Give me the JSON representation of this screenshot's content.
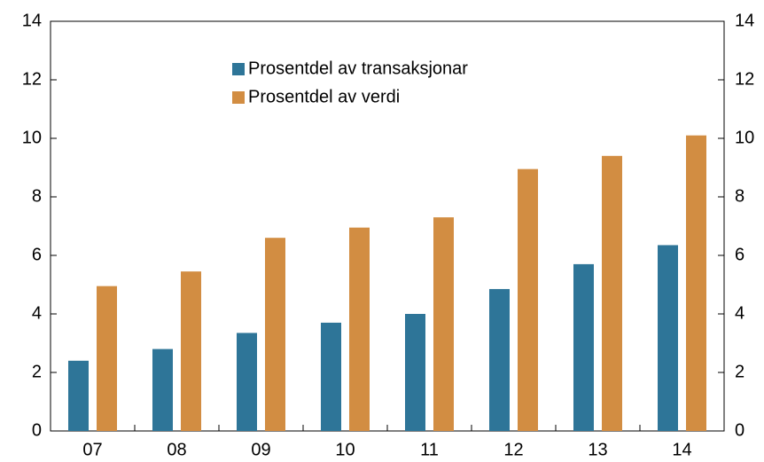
{
  "chart_data": {
    "type": "bar",
    "categories": [
      "07",
      "08",
      "09",
      "10",
      "11",
      "12",
      "13",
      "14"
    ],
    "series": [
      {
        "name": "Prosentdel av transaksjonar",
        "color": "#2e7598",
        "values": [
          2.4,
          2.8,
          3.35,
          3.7,
          4.0,
          4.85,
          5.7,
          6.35
        ]
      },
      {
        "name": "Prosentdel av verdi",
        "color": "#d28d42",
        "values": [
          4.95,
          5.45,
          6.6,
          6.95,
          7.3,
          8.95,
          9.4,
          10.1
        ]
      }
    ],
    "ylim": [
      0,
      14
    ],
    "yticks": [
      0,
      2,
      4,
      6,
      8,
      10,
      12,
      14
    ],
    "y2lim": [
      0,
      14
    ],
    "y2ticks": [
      0,
      2,
      4,
      6,
      8,
      10,
      12,
      14
    ],
    "grid": false,
    "legend": "upper center"
  }
}
